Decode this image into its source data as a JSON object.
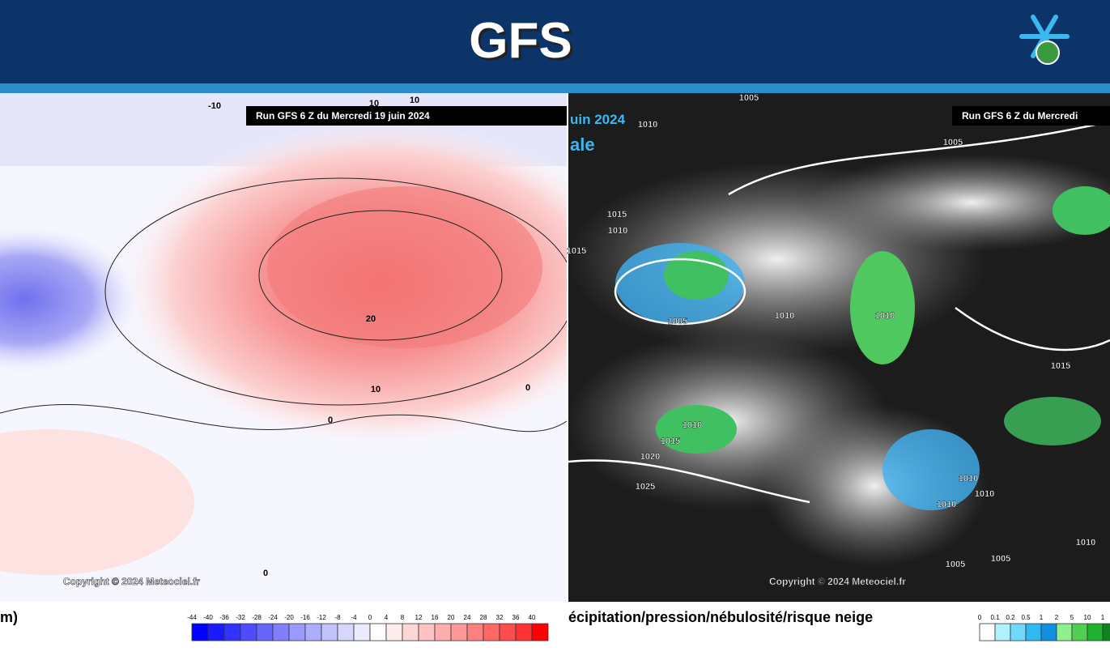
{
  "header": {
    "title": "GFS"
  },
  "left_map": {
    "run_label": "Run GFS 6 Z du Mercredi 19 juin 2024",
    "copyright": "Copyright © 2024 Meteociel.fr",
    "contour_labels": [
      "-10",
      "10",
      "10",
      "20",
      "10",
      "0",
      "0",
      "0"
    ],
    "caption": "m)",
    "legend": {
      "labels": [
        "-44",
        "-40",
        "-36",
        "-32",
        "-28",
        "-24",
        "-20",
        "-16",
        "-12",
        "-8",
        "-4",
        "0",
        "4",
        "8",
        "12",
        "16",
        "20",
        "24",
        "28",
        "32",
        "36",
        "40"
      ],
      "colors": [
        "#0000ff",
        "#1a1aff",
        "#3333ff",
        "#4d4dff",
        "#6666ff",
        "#7f7fff",
        "#9999ff",
        "#adadff",
        "#c2c2ff",
        "#d6d6ff",
        "#ebebff",
        "#ffffff",
        "#ffebeb",
        "#ffd6d6",
        "#ffc2c2",
        "#ffadad",
        "#ff9999",
        "#ff7f7f",
        "#ff6666",
        "#ff4d4d",
        "#ff3333",
        "#ff0000"
      ]
    }
  },
  "right_map": {
    "run_label": "Run GFS 6 Z du Mercredi",
    "partial_title": [
      "uin 2024",
      "ale"
    ],
    "copyright": "Copyright © 2024 Meteociel.fr",
    "contour_labels": [
      "1005",
      "1010",
      "1005",
      "1015",
      "1010",
      "1015",
      "1005",
      "1010",
      "1010",
      "1015",
      "1010",
      "1015",
      "1020",
      "1025",
      "1010",
      "1010",
      "1010",
      "1010",
      "1005",
      "1005"
    ],
    "caption": "écipitation/pression/nébulosité/risque neige",
    "legend": {
      "labels": [
        "0",
        "0.1",
        "0.2",
        "0.5",
        "1",
        "2",
        "5",
        "10",
        "1"
      ],
      "colors": [
        "#ffffff",
        "#b0f0ff",
        "#70d8ff",
        "#30b8f0",
        "#1090e0",
        "#90f090",
        "#50d050",
        "#20b030",
        "#108020"
      ]
    }
  }
}
